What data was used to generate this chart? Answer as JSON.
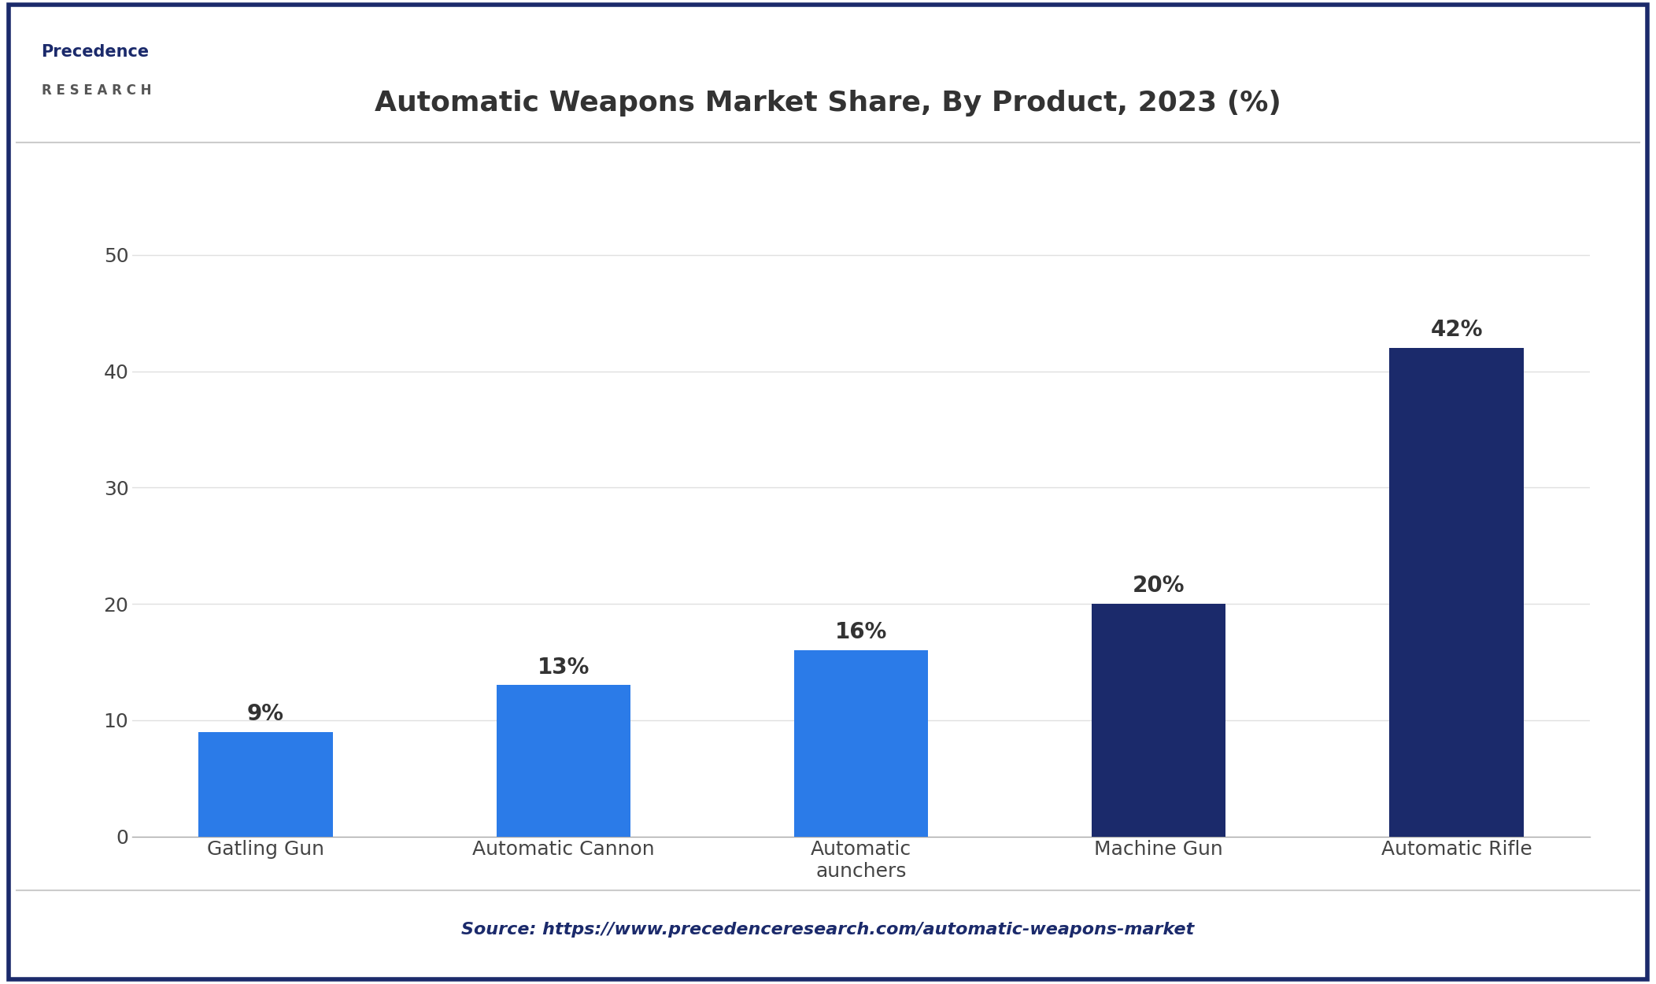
{
  "title": "Automatic Weapons Market Share, By Product, 2023 (%)",
  "categories": [
    "Gatling Gun",
    "Automatic Cannon",
    "Automatic\naunchers",
    "Machine Gun",
    "Automatic Rifle"
  ],
  "values": [
    9,
    13,
    16,
    20,
    42
  ],
  "labels": [
    "9%",
    "13%",
    "16%",
    "20%",
    "42%"
  ],
  "bar_colors": [
    "#2B7BE8",
    "#2B7BE8",
    "#2B7BE8",
    "#1B2A6B",
    "#1B2A6B"
  ],
  "ylim": [
    0,
    55
  ],
  "yticks": [
    0,
    10,
    20,
    30,
    40,
    50
  ],
  "title_fontsize": 26,
  "tick_fontsize": 18,
  "label_fontsize": 20,
  "source_text": "Source: https://www.precedenceresearch.com/automatic-weapons-market",
  "background_color": "#FFFFFF",
  "border_color": "#1B2A6B",
  "grid_color": "#E0E0E0",
  "logo_line1": "Precedence",
  "logo_line2": "R E S E A R C H"
}
